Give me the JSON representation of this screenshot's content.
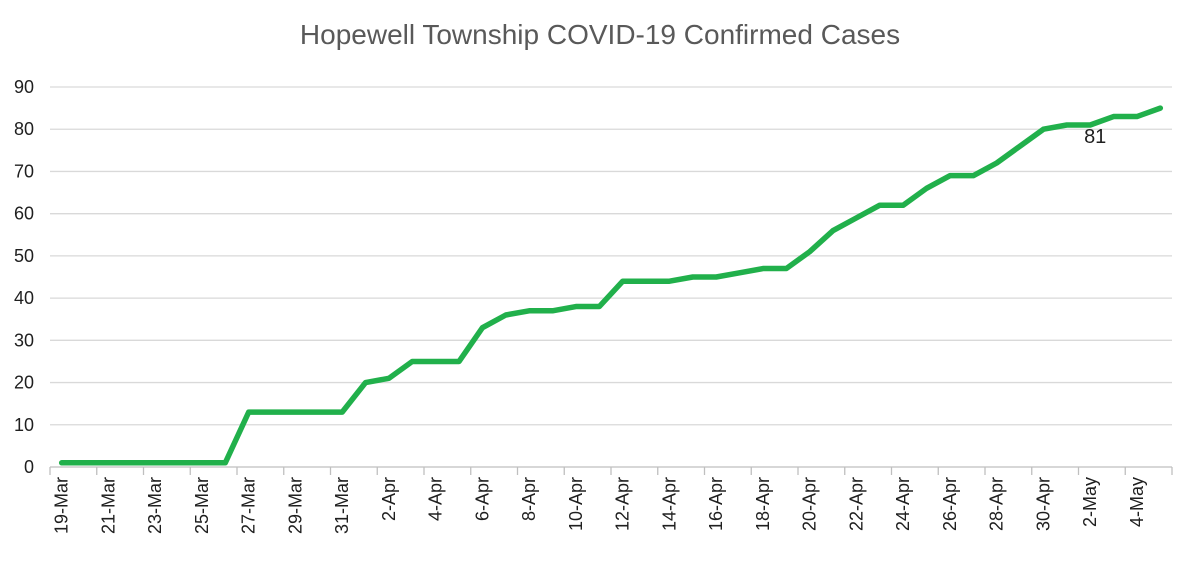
{
  "chart_data": {
    "type": "line",
    "title": "Hopewell Township COVID-19 Confirmed Cases",
    "xlabel": "",
    "ylabel": "",
    "ylim": [
      0,
      90
    ],
    "yticks": [
      0,
      10,
      20,
      30,
      40,
      50,
      60,
      70,
      80,
      90
    ],
    "grid": true,
    "legend": "none",
    "x": [
      "19-Mar",
      "20-Mar",
      "21-Mar",
      "22-Mar",
      "23-Mar",
      "24-Mar",
      "25-Mar",
      "26-Mar",
      "27-Mar",
      "28-Mar",
      "29-Mar",
      "30-Mar",
      "31-Mar",
      "1-Apr",
      "2-Apr",
      "3-Apr",
      "4-Apr",
      "5-Apr",
      "6-Apr",
      "7-Apr",
      "8-Apr",
      "9-Apr",
      "10-Apr",
      "11-Apr",
      "12-Apr",
      "13-Apr",
      "14-Apr",
      "15-Apr",
      "16-Apr",
      "17-Apr",
      "18-Apr",
      "19-Apr",
      "20-Apr",
      "21-Apr",
      "22-Apr",
      "23-Apr",
      "24-Apr",
      "25-Apr",
      "26-Apr",
      "27-Apr",
      "28-Apr",
      "29-Apr",
      "30-Apr",
      "1-May",
      "2-May",
      "3-May",
      "4-May",
      "5-May"
    ],
    "x_tick_labels": [
      "19-Mar",
      "21-Mar",
      "23-Mar",
      "25-Mar",
      "27-Mar",
      "29-Mar",
      "31-Mar",
      "2-Apr",
      "4-Apr",
      "6-Apr",
      "8-Apr",
      "10-Apr",
      "12-Apr",
      "14-Apr",
      "16-Apr",
      "18-Apr",
      "20-Apr",
      "22-Apr",
      "24-Apr",
      "26-Apr",
      "28-Apr",
      "30-Apr",
      "2-May",
      "4-May"
    ],
    "series": [
      {
        "values": [
          1,
          1,
          1,
          1,
          1,
          1,
          1,
          1,
          13,
          13,
          13,
          13,
          13,
          20,
          21,
          25,
          25,
          25,
          33,
          36,
          37,
          37,
          38,
          38,
          44,
          44,
          44,
          45,
          45,
          46,
          47,
          47,
          51,
          56,
          59,
          62,
          62,
          66,
          69,
          69,
          72,
          76,
          80,
          81,
          81,
          83,
          83,
          85
        ],
        "color": "#21b04b"
      }
    ],
    "annotations": [
      {
        "x": "2-May",
        "value": 81,
        "text": "81"
      }
    ]
  }
}
